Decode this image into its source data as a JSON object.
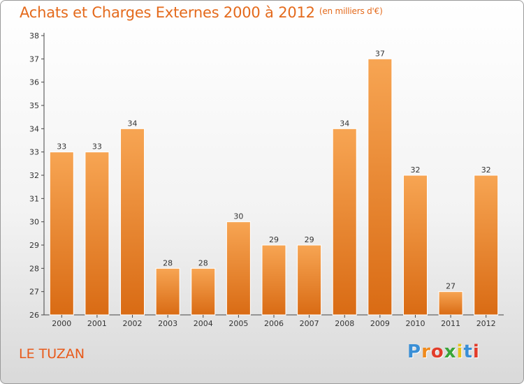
{
  "header": {
    "title": "Achats et Charges Externes 2000 à 2012",
    "unit": "(en milliers d'€)"
  },
  "footer": {
    "place": "LE TUZAN",
    "logo": [
      "P",
      "r",
      "o",
      "x",
      "i",
      "t",
      "i"
    ]
  },
  "colors": {
    "bar_top": "#f7a553",
    "bar_bottom": "#d96b14",
    "title": "#e46a1c",
    "logo": [
      "#3a8fd6",
      "#f08a1c",
      "#e23c2a",
      "#3aa53a",
      "#e8c21c",
      "#3a8fd6",
      "#e23c2a"
    ]
  },
  "chart_data": {
    "type": "bar",
    "title": "Achats et Charges Externes 2000 à 2012",
    "categories": [
      "2000",
      "2001",
      "2002",
      "2003",
      "2004",
      "2005",
      "2006",
      "2007",
      "2008",
      "2009",
      "2010",
      "2011",
      "2012"
    ],
    "values": [
      33,
      33,
      34,
      28,
      28,
      30,
      29,
      29,
      34,
      37,
      32,
      27,
      32
    ],
    "ylim": [
      26,
      38
    ],
    "yticks": [
      26,
      27,
      28,
      29,
      30,
      31,
      32,
      33,
      34,
      35,
      36,
      37,
      38
    ],
    "grid": false,
    "legend": "none"
  }
}
